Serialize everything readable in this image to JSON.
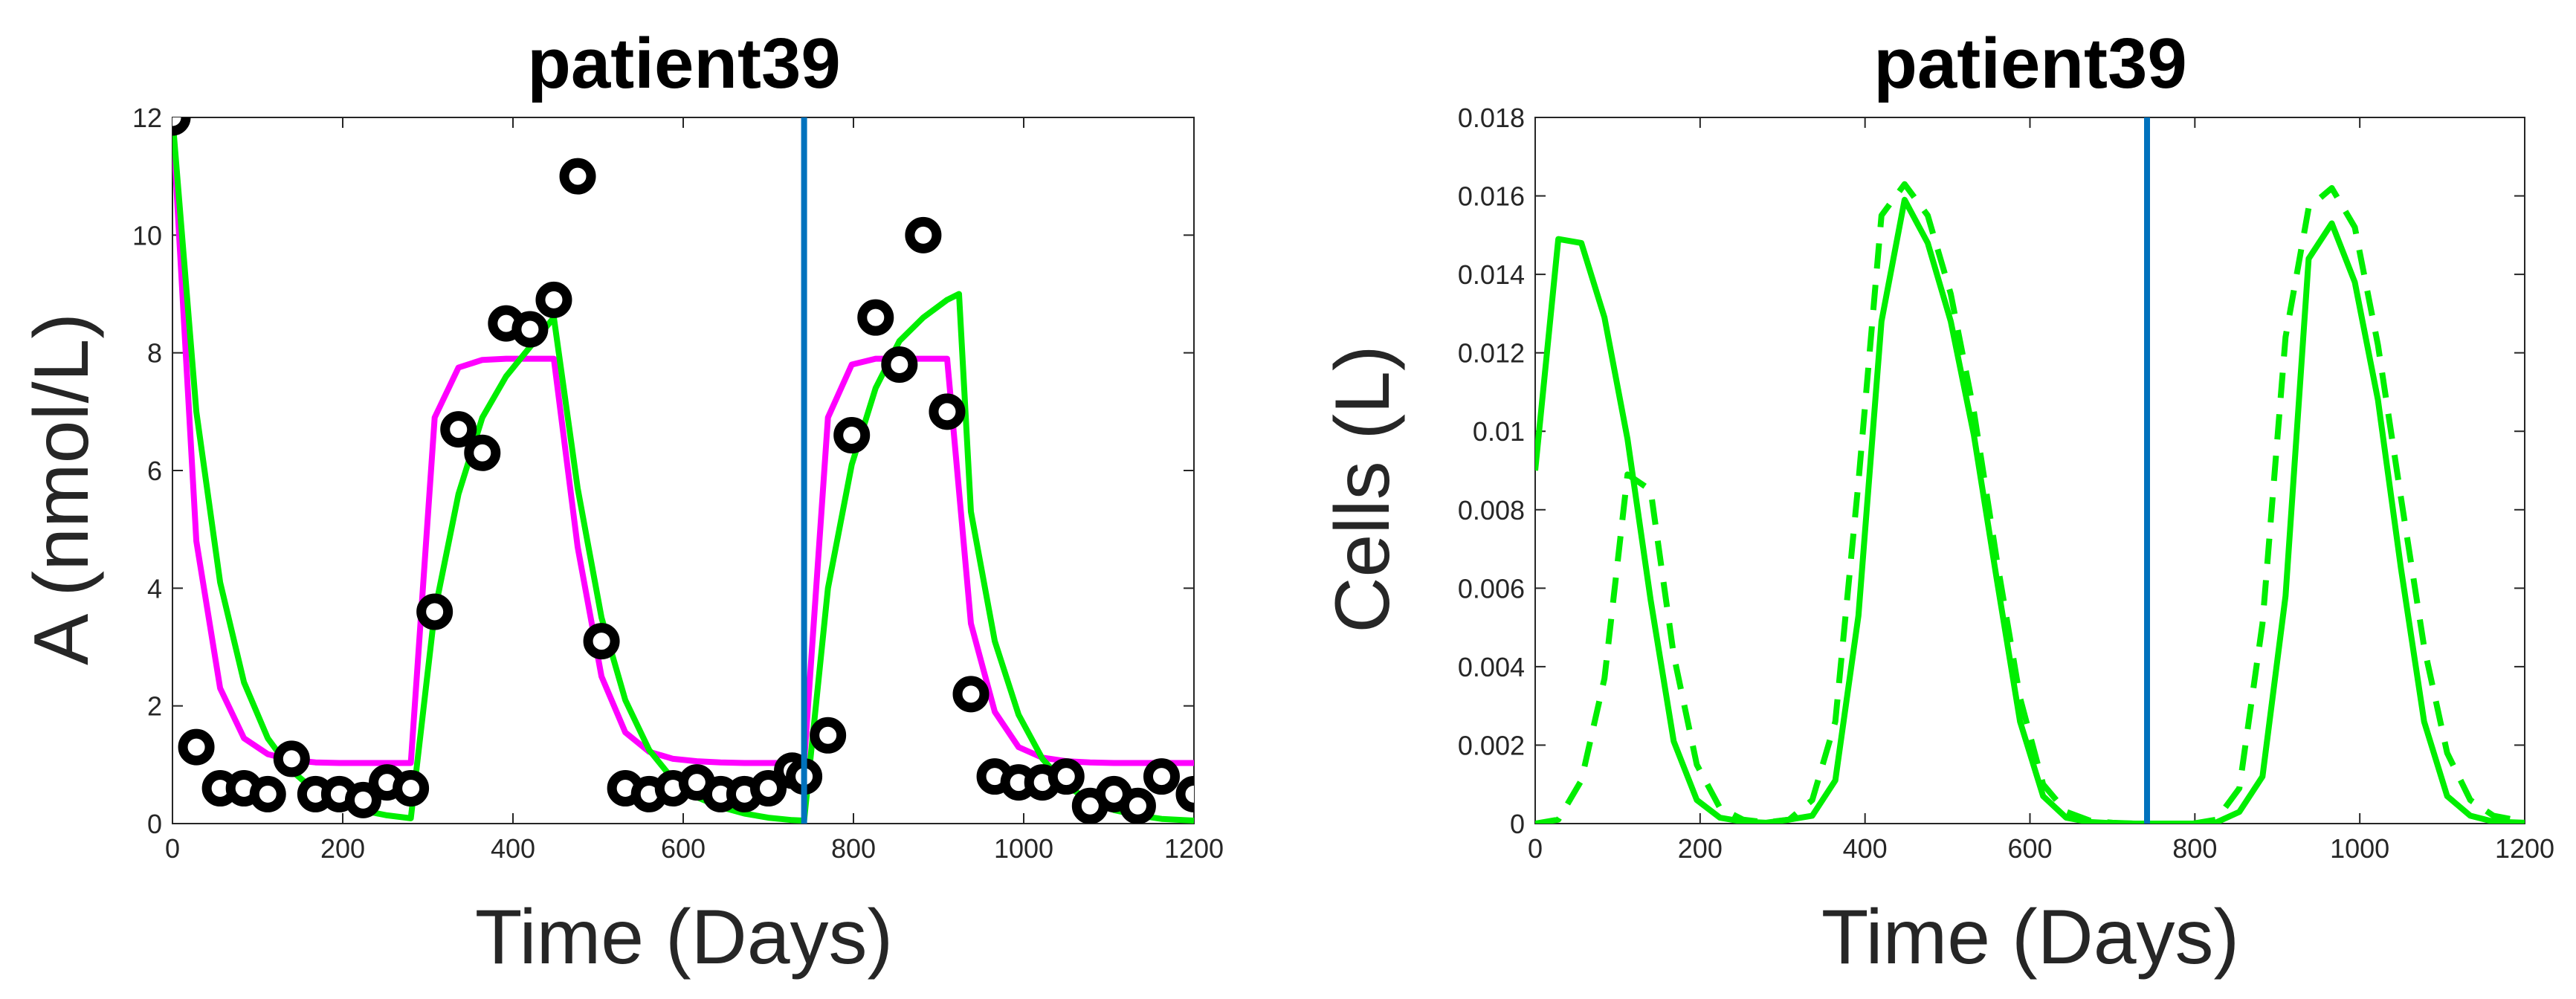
{
  "chart_data": [
    {
      "type": "line",
      "title": "patient39",
      "xlabel": "Time (Days)",
      "ylabel": "A (nmol/L)",
      "xlim": [
        0,
        1200
      ],
      "ylim": [
        0,
        12
      ],
      "xticks": [
        "0",
        "200",
        "400",
        "600",
        "800",
        "1000",
        "1200"
      ],
      "yticks": [
        "0",
        "2",
        "4",
        "6",
        "8",
        "10",
        "12"
      ],
      "vline": {
        "x": 742,
        "color": "#0072BD"
      },
      "series": [
        {
          "name": "model fit (magenta)",
          "style": "line",
          "color": "#ff00ff",
          "x": [
            0,
            28,
            56,
            84,
            112,
            140,
            168,
            196,
            224,
            252,
            280,
            308,
            336,
            364,
            392,
            420,
            448,
            476,
            504,
            532,
            560,
            588,
            616,
            644,
            672,
            700,
            728,
            742,
            770,
            798,
            826,
            854,
            882,
            910,
            938,
            966,
            994,
            1022,
            1050,
            1078,
            1106,
            1134,
            1162,
            1200
          ],
          "values": [
            12,
            4.8,
            2.3,
            1.45,
            1.18,
            1.08,
            1.04,
            1.03,
            1.03,
            1.03,
            1.03,
            6.9,
            7.75,
            7.88,
            7.9,
            7.9,
            7.9,
            4.7,
            2.5,
            1.55,
            1.22,
            1.1,
            1.06,
            1.04,
            1.03,
            1.03,
            1.03,
            1.03,
            6.9,
            7.8,
            7.9,
            7.9,
            7.9,
            7.9,
            3.4,
            1.9,
            1.3,
            1.12,
            1.06,
            1.04,
            1.03,
            1.03,
            1.03,
            1.03
          ]
        },
        {
          "name": "model fit (green)",
          "style": "line",
          "color": "#00ee00",
          "x": [
            0,
            28,
            56,
            84,
            112,
            140,
            168,
            196,
            224,
            252,
            280,
            308,
            336,
            364,
            392,
            420,
            448,
            476,
            504,
            532,
            560,
            588,
            616,
            644,
            672,
            700,
            728,
            742,
            770,
            798,
            826,
            854,
            882,
            910,
            924,
            938,
            966,
            994,
            1022,
            1050,
            1078,
            1106,
            1134,
            1162,
            1200
          ],
          "values": [
            12,
            7,
            4.1,
            2.4,
            1.45,
            0.9,
            0.55,
            0.35,
            0.22,
            0.14,
            0.09,
            3.6,
            5.6,
            6.9,
            7.6,
            8.1,
            8.6,
            5.7,
            3.5,
            2.1,
            1.25,
            0.75,
            0.45,
            0.28,
            0.17,
            0.1,
            0.06,
            0.05,
            4.0,
            6.1,
            7.4,
            8.2,
            8.6,
            8.9,
            9.0,
            5.3,
            3.1,
            1.85,
            1.1,
            0.65,
            0.38,
            0.23,
            0.14,
            0.08,
            0.05
          ]
        },
        {
          "name": "data",
          "style": "markers",
          "color": "#000000",
          "x": [
            0,
            28,
            56,
            84,
            112,
            140,
            168,
            196,
            224,
            252,
            280,
            308,
            336,
            364,
            392,
            420,
            448,
            476,
            504,
            532,
            560,
            588,
            616,
            644,
            672,
            700,
            728,
            742,
            770,
            798,
            826,
            854,
            882,
            910,
            938,
            966,
            994,
            1022,
            1050,
            1078,
            1106,
            1134,
            1162,
            1200
          ],
          "values": [
            12,
            1.3,
            0.6,
            0.6,
            0.5,
            1.1,
            0.5,
            0.5,
            0.4,
            0.7,
            0.6,
            3.6,
            6.7,
            6.3,
            8.5,
            8.4,
            8.9,
            11,
            3.1,
            0.6,
            0.5,
            0.6,
            0.7,
            0.5,
            0.5,
            0.6,
            0.9,
            0.8,
            1.5,
            6.6,
            8.6,
            7.8,
            10,
            7.0,
            2.2,
            0.8,
            0.7,
            0.7,
            0.8,
            0.3,
            0.5,
            0.3,
            0.8,
            0.5
          ]
        }
      ]
    },
    {
      "type": "line",
      "title": "patient39",
      "xlabel": "Time (Days)",
      "ylabel": "Cells (L)",
      "xlim": [
        0,
        1200
      ],
      "ylim": [
        0,
        0.018
      ],
      "xticks": [
        "0",
        "200",
        "400",
        "600",
        "800",
        "1000",
        "1200"
      ],
      "yticks": [
        "0",
        "0.002",
        "0.004",
        "0.006",
        "0.008",
        "0.01",
        "0.012",
        "0.014",
        "0.016",
        "0.018"
      ],
      "vline": {
        "x": 742,
        "color": "#0072BD"
      },
      "series": [
        {
          "name": "solid",
          "style": "line",
          "color": "#00ee00",
          "x": [
            0,
            28,
            56,
            84,
            112,
            140,
            168,
            196,
            224,
            252,
            280,
            308,
            336,
            364,
            392,
            420,
            448,
            476,
            504,
            532,
            560,
            588,
            616,
            644,
            672,
            700,
            728,
            742,
            770,
            798,
            826,
            854,
            882,
            910,
            938,
            966,
            994,
            1022,
            1050,
            1078,
            1106,
            1134,
            1162,
            1200
          ],
          "values": [
            0.009,
            0.0149,
            0.0148,
            0.0129,
            0.0098,
            0.0057,
            0.0021,
            0.0006,
            0.00015,
            5e-05,
            2e-05,
            0.0001,
            0.0002,
            0.0011,
            0.0053,
            0.0128,
            0.0159,
            0.0148,
            0.0128,
            0.0099,
            0.0062,
            0.0026,
            0.0007,
            0.00015,
            4e-05,
            1e-05,
            0,
            0,
            0,
            0,
            3e-05,
            0.0003,
            0.0012,
            0.0058,
            0.0144,
            0.0153,
            0.0138,
            0.0108,
            0.0065,
            0.0026,
            0.0007,
            0.0002,
            5e-05,
            2e-05
          ]
        },
        {
          "name": "dashed",
          "style": "dashed",
          "color": "#00ee00",
          "x": [
            0,
            28,
            56,
            84,
            112,
            140,
            168,
            196,
            224,
            252,
            280,
            308,
            336,
            364,
            392,
            420,
            448,
            476,
            504,
            532,
            560,
            588,
            616,
            644,
            672,
            700,
            728,
            742,
            770,
            798,
            826,
            854,
            882,
            910,
            938,
            966,
            994,
            1022,
            1050,
            1078,
            1106,
            1134,
            1162,
            1200
          ],
          "values": [
            0,
            0.0001,
            0.0011,
            0.0037,
            0.0089,
            0.0085,
            0.0043,
            0.0015,
            0.0004,
            0.0001,
            3e-05,
            0.0001,
            0.0006,
            0.0026,
            0.0087,
            0.0155,
            0.0163,
            0.0155,
            0.0135,
            0.0105,
            0.0067,
            0.0032,
            0.001,
            0.0003,
            8e-05,
            2e-05,
            0,
            0,
            0,
            0,
            0.0001,
            0.0009,
            0.0051,
            0.0124,
            0.0157,
            0.0162,
            0.0152,
            0.0122,
            0.0083,
            0.0045,
            0.0018,
            0.0006,
            0.0002,
            5e-05
          ]
        }
      ]
    }
  ]
}
